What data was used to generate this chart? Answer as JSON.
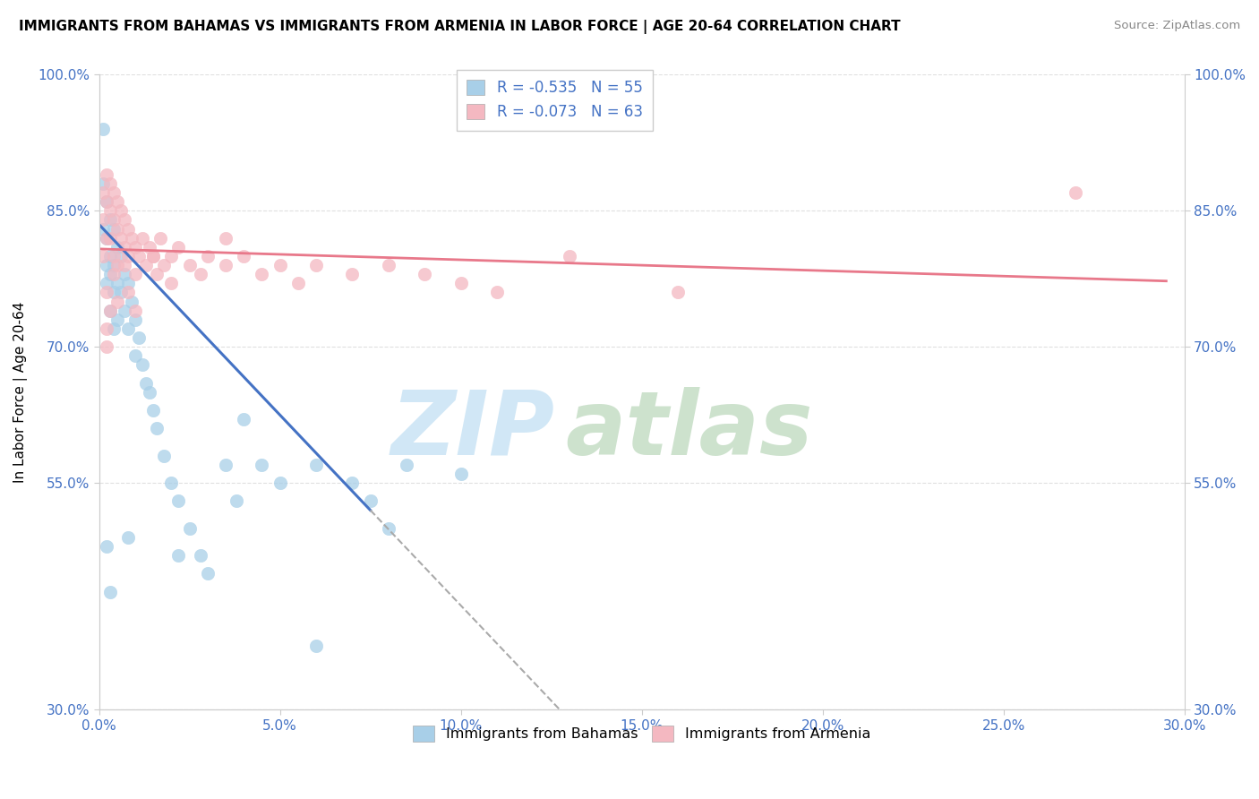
{
  "title": "IMMIGRANTS FROM BAHAMAS VS IMMIGRANTS FROM ARMENIA IN LABOR FORCE | AGE 20-64 CORRELATION CHART",
  "source": "Source: ZipAtlas.com",
  "ylabel": "In Labor Force | Age 20-64",
  "xlim": [
    0.0,
    0.3
  ],
  "ylim": [
    0.3,
    1.0
  ],
  "xticks": [
    0.0,
    0.05,
    0.1,
    0.15,
    0.2,
    0.25,
    0.3
  ],
  "yticks": [
    0.3,
    0.55,
    0.7,
    0.85,
    1.0
  ],
  "legend_label1": "R = -0.535   N = 55",
  "legend_label2": "R = -0.073   N = 63",
  "color_bahamas": "#a8cfe8",
  "color_armenia": "#f4b8c1",
  "color_line_bahamas": "#4472c4",
  "color_line_armenia": "#e8788a",
  "text_color": "#4472c4",
  "grid_color": "#e0e0e0",
  "watermark_zip_color": "#cce5f5",
  "watermark_atlas_color": "#c8dfc8",
  "intercept_bah": 0.835,
  "slope_bah": -4.2,
  "intercept_arm": 0.808,
  "slope_arm": -0.12,
  "line_bah_solid_end": 0.075,
  "line_bah_dash_end": 0.155,
  "line_arm_end": 0.295,
  "bahamas_x": [
    0.001,
    0.001,
    0.001,
    0.002,
    0.002,
    0.002,
    0.002,
    0.003,
    0.003,
    0.003,
    0.003,
    0.004,
    0.004,
    0.004,
    0.004,
    0.005,
    0.005,
    0.005,
    0.006,
    0.006,
    0.007,
    0.007,
    0.008,
    0.008,
    0.009,
    0.01,
    0.01,
    0.011,
    0.012,
    0.013,
    0.014,
    0.015,
    0.016,
    0.018,
    0.02,
    0.022,
    0.025,
    0.028,
    0.03,
    0.035,
    0.038,
    0.04,
    0.045,
    0.05,
    0.06,
    0.07,
    0.075,
    0.08,
    0.085,
    0.1,
    0.002,
    0.003,
    0.008,
    0.022,
    0.06
  ],
  "bahamas_y": [
    0.94,
    0.88,
    0.83,
    0.86,
    0.82,
    0.79,
    0.77,
    0.84,
    0.8,
    0.78,
    0.74,
    0.83,
    0.79,
    0.76,
    0.72,
    0.81,
    0.77,
    0.73,
    0.8,
    0.76,
    0.78,
    0.74,
    0.77,
    0.72,
    0.75,
    0.73,
    0.69,
    0.71,
    0.68,
    0.66,
    0.65,
    0.63,
    0.61,
    0.58,
    0.55,
    0.53,
    0.5,
    0.47,
    0.45,
    0.57,
    0.53,
    0.62,
    0.57,
    0.55,
    0.57,
    0.55,
    0.53,
    0.5,
    0.57,
    0.56,
    0.48,
    0.43,
    0.49,
    0.47,
    0.37
  ],
  "armenia_x": [
    0.001,
    0.001,
    0.001,
    0.002,
    0.002,
    0.002,
    0.003,
    0.003,
    0.003,
    0.004,
    0.004,
    0.004,
    0.005,
    0.005,
    0.005,
    0.006,
    0.006,
    0.007,
    0.007,
    0.008,
    0.008,
    0.009,
    0.01,
    0.01,
    0.011,
    0.012,
    0.013,
    0.014,
    0.015,
    0.016,
    0.017,
    0.018,
    0.02,
    0.022,
    0.025,
    0.028,
    0.03,
    0.035,
    0.04,
    0.045,
    0.05,
    0.055,
    0.06,
    0.07,
    0.08,
    0.09,
    0.1,
    0.11,
    0.13,
    0.16,
    0.002,
    0.003,
    0.004,
    0.005,
    0.007,
    0.008,
    0.01,
    0.015,
    0.02,
    0.035,
    0.002,
    0.002,
    0.27
  ],
  "armenia_y": [
    0.87,
    0.84,
    0.8,
    0.89,
    0.86,
    0.82,
    0.88,
    0.85,
    0.82,
    0.87,
    0.84,
    0.8,
    0.86,
    0.83,
    0.79,
    0.85,
    0.82,
    0.84,
    0.81,
    0.83,
    0.8,
    0.82,
    0.81,
    0.78,
    0.8,
    0.82,
    0.79,
    0.81,
    0.8,
    0.78,
    0.82,
    0.79,
    0.8,
    0.81,
    0.79,
    0.78,
    0.8,
    0.79,
    0.8,
    0.78,
    0.79,
    0.77,
    0.79,
    0.78,
    0.79,
    0.78,
    0.77,
    0.76,
    0.8,
    0.76,
    0.76,
    0.74,
    0.78,
    0.75,
    0.79,
    0.76,
    0.74,
    0.8,
    0.77,
    0.82,
    0.72,
    0.7,
    0.87
  ]
}
